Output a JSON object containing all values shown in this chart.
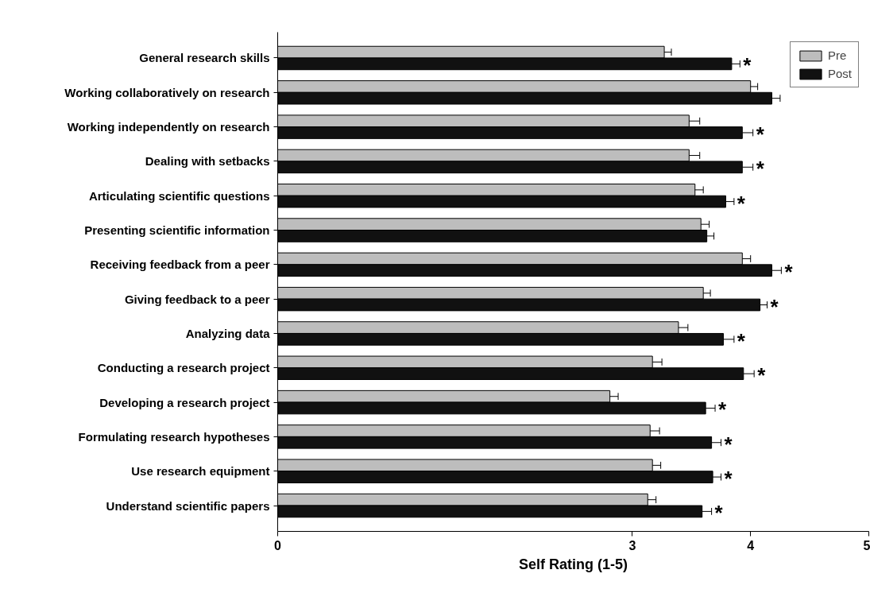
{
  "chart_data": {
    "type": "bar",
    "orientation": "horizontal",
    "xlabel": "Self Rating (1-5)",
    "categories": [
      "General research skills",
      "Working collaboratively on research",
      "Working independently on research",
      "Dealing with setbacks",
      "Articulating scientific questions",
      "Presenting scientific information",
      "Receiving feedback from a peer",
      "Giving feedback to a peer",
      "Analyzing data",
      "Conducting a research project",
      "Developing a research project",
      "Formulating research hypotheses",
      "Use research equipment",
      "Understand scientific papers"
    ],
    "series": [
      {
        "name": "Pre",
        "color": "#bdbdbd",
        "values": [
          3.27,
          4.0,
          3.48,
          3.48,
          3.53,
          3.58,
          3.93,
          3.6,
          3.39,
          3.17,
          2.81,
          3.15,
          3.17,
          3.13
        ],
        "errors": [
          [
            3.27,
            3.33
          ],
          [
            4.0,
            4.06
          ],
          [
            3.48,
            3.57
          ],
          [
            3.48,
            3.57
          ],
          [
            3.53,
            3.6
          ],
          [
            3.58,
            3.65
          ],
          [
            3.93,
            4.0
          ],
          [
            3.6,
            3.66
          ],
          [
            3.39,
            3.47
          ],
          [
            3.17,
            3.25
          ],
          [
            2.81,
            2.88
          ],
          [
            3.15,
            3.23
          ],
          [
            3.17,
            3.24
          ],
          [
            3.13,
            3.2
          ]
        ]
      },
      {
        "name": "Post",
        "color": "#111111",
        "values": [
          3.84,
          4.18,
          3.93,
          3.93,
          3.79,
          3.63,
          4.18,
          4.08,
          3.77,
          3.94,
          3.62,
          3.67,
          3.68,
          3.59
        ],
        "errors": [
          [
            3.84,
            3.91
          ],
          [
            4.18,
            4.25
          ],
          [
            3.93,
            4.02
          ],
          [
            3.93,
            4.02
          ],
          [
            3.79,
            3.86
          ],
          [
            3.63,
            3.69
          ],
          [
            4.18,
            4.26
          ],
          [
            4.08,
            4.14
          ],
          [
            3.77,
            3.86
          ],
          [
            3.94,
            4.03
          ],
          [
            3.62,
            3.7
          ],
          [
            3.67,
            3.75
          ],
          [
            3.68,
            3.75
          ],
          [
            3.59,
            3.67
          ]
        ]
      }
    ],
    "xlim": [
      0,
      5
    ],
    "xticks": [
      0,
      3,
      4,
      5
    ],
    "grid": false,
    "legend": "top right",
    "annotations": [
      {
        "text": "*",
        "x": 3.91,
        "y": "General research skills"
      },
      {
        "text": "*",
        "x": 4.02,
        "y": "Working independently on research"
      },
      {
        "text": "*",
        "x": 4.02,
        "y": "Dealing with setbacks"
      },
      {
        "text": "*",
        "x": 3.86,
        "y": "Articulating scientific questions"
      },
      {
        "text": "*",
        "x": 4.26,
        "y": "Receiving feedback from a peer"
      },
      {
        "text": "*",
        "x": 4.14,
        "y": "Giving feedback to a peer"
      },
      {
        "text": "*",
        "x": 3.86,
        "y": "Analyzing data"
      },
      {
        "text": "*",
        "x": 4.03,
        "y": "Conducting a research project"
      },
      {
        "text": "*",
        "x": 3.7,
        "y": "Developing a research project"
      },
      {
        "text": "*",
        "x": 3.75,
        "y": "Formulating research hypotheses"
      },
      {
        "text": "*",
        "x": 3.75,
        "y": "Use research equipment"
      },
      {
        "text": "*",
        "x": 3.67,
        "y": "Understand scientific papers"
      }
    ]
  }
}
